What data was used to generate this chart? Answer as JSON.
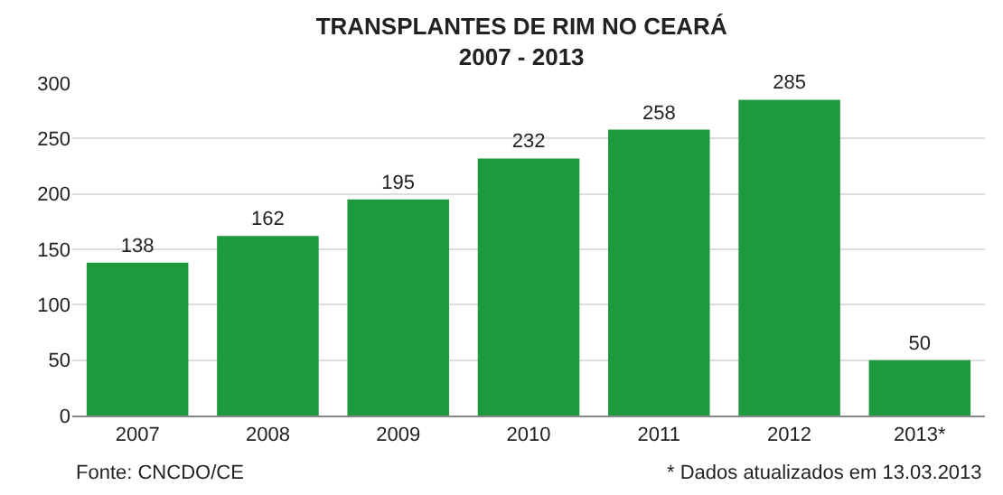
{
  "chart_data": {
    "type": "bar",
    "title": "TRANSPLANTES DE RIM NO CEARÁ\n2007 - 2013",
    "categories": [
      "2007",
      "2008",
      "2009",
      "2010",
      "2011",
      "2012",
      "2013*"
    ],
    "values": [
      138,
      162,
      195,
      232,
      258,
      285,
      50
    ],
    "color": "#1e9a3e",
    "ylim": [
      0,
      300
    ],
    "yticks": [
      0,
      50,
      100,
      150,
      200,
      250,
      300
    ],
    "grid": "y",
    "data_labels": true,
    "annotations": [
      "Fonte: CNCDO/CE",
      "* Dados atualizados em 13.03.2013"
    ]
  }
}
